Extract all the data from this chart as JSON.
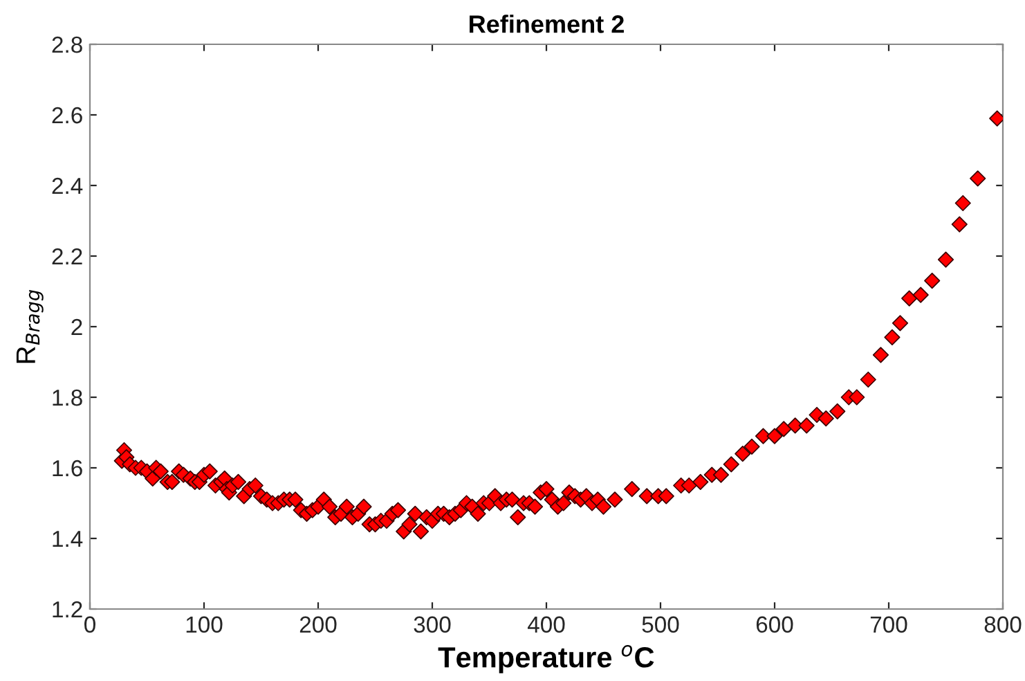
{
  "chart_data": {
    "type": "scatter",
    "title": "Refinement 2",
    "xlabel": "Temperature $^{o}$C",
    "ylabel": "R$_{Bragg}$",
    "xlim": [
      0,
      800
    ],
    "xticks": [
      0,
      100,
      200,
      300,
      400,
      500,
      600,
      700,
      800
    ],
    "ylim": [
      1.2,
      2.8
    ],
    "yticks": [
      1.2,
      1.4,
      1.6,
      1.8,
      2,
      2.2,
      2.4,
      2.6,
      2.8
    ],
    "grid": false,
    "marker": "diamond",
    "series": [
      {
        "color": "#ff0000",
        "x": [
          28,
          30,
          32,
          35,
          40,
          45,
          50,
          55,
          58,
          62,
          68,
          72,
          78,
          82,
          88,
          92,
          96,
          100,
          105,
          110,
          115,
          118,
          120,
          122,
          125,
          130,
          135,
          140,
          145,
          150,
          155,
          160,
          165,
          170,
          175,
          180,
          185,
          190,
          195,
          200,
          205,
          210,
          215,
          220,
          225,
          230,
          235,
          240,
          245,
          250,
          255,
          260,
          265,
          270,
          275,
          280,
          285,
          290,
          295,
          300,
          305,
          310,
          315,
          320,
          325,
          330,
          335,
          340,
          345,
          350,
          355,
          360,
          365,
          370,
          375,
          380,
          385,
          390,
          395,
          400,
          405,
          410,
          415,
          420,
          425,
          430,
          435,
          440,
          445,
          450,
          460,
          475,
          488,
          498,
          505,
          518,
          525,
          535,
          545,
          553,
          562,
          572,
          580,
          590,
          600,
          608,
          618,
          628,
          637,
          645,
          655,
          665,
          672,
          682,
          693,
          703,
          710,
          718,
          728,
          738,
          750,
          762,
          765,
          778,
          795
        ],
        "values": [
          1.62,
          1.65,
          1.63,
          1.61,
          1.6,
          1.6,
          1.59,
          1.57,
          1.6,
          1.59,
          1.56,
          1.56,
          1.59,
          1.58,
          1.57,
          1.56,
          1.56,
          1.58,
          1.59,
          1.55,
          1.56,
          1.57,
          1.54,
          1.53,
          1.55,
          1.56,
          1.52,
          1.54,
          1.55,
          1.52,
          1.51,
          1.5,
          1.5,
          1.51,
          1.51,
          1.51,
          1.48,
          1.47,
          1.48,
          1.49,
          1.51,
          1.49,
          1.46,
          1.47,
          1.49,
          1.46,
          1.47,
          1.49,
          1.44,
          1.44,
          1.45,
          1.45,
          1.47,
          1.48,
          1.42,
          1.44,
          1.47,
          1.42,
          1.46,
          1.45,
          1.47,
          1.47,
          1.46,
          1.47,
          1.48,
          1.5,
          1.49,
          1.47,
          1.5,
          1.5,
          1.52,
          1.5,
          1.51,
          1.51,
          1.46,
          1.5,
          1.5,
          1.49,
          1.53,
          1.54,
          1.51,
          1.49,
          1.5,
          1.53,
          1.52,
          1.51,
          1.52,
          1.5,
          1.51,
          1.49,
          1.51,
          1.54,
          1.52,
          1.52,
          1.52,
          1.55,
          1.55,
          1.56,
          1.58,
          1.58,
          1.61,
          1.64,
          1.66,
          1.69,
          1.69,
          1.71,
          1.72,
          1.72,
          1.75,
          1.74,
          1.76,
          1.8,
          1.8,
          1.85,
          1.92,
          1.97,
          2.01,
          2.08,
          2.09,
          2.13,
          2.19,
          2.29,
          2.35,
          2.42,
          2.59
        ]
      }
    ]
  }
}
